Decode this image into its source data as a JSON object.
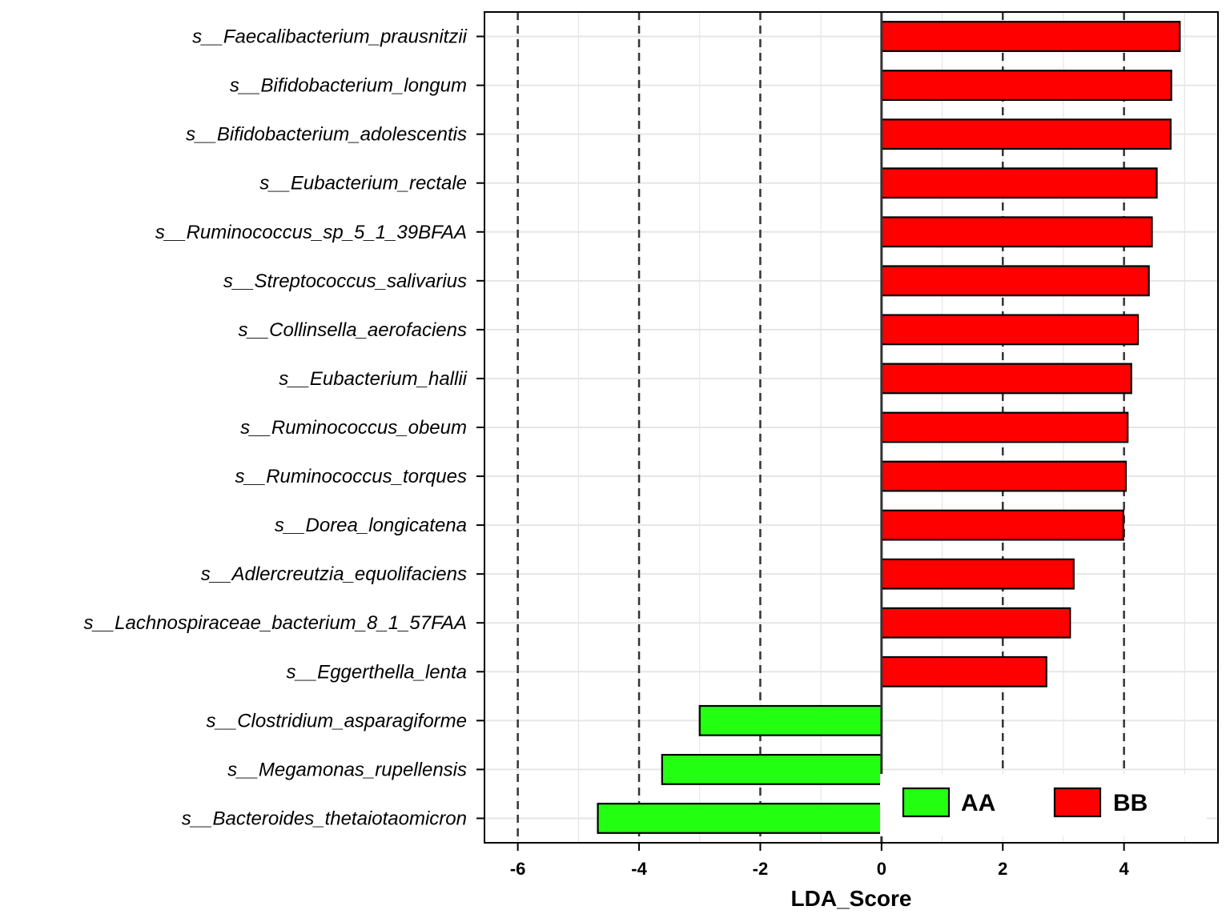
{
  "chart_data": {
    "type": "bar",
    "orientation": "horizontal",
    "categories": [
      "s__Faecalibacterium_prausnitzii",
      "s__Bifidobacterium_longum",
      "s__Bifidobacterium_adolescentis",
      "s__Eubacterium_rectale",
      "s__Ruminococcus_sp_5_1_39BFAA",
      "s__Streptococcus_salivarius",
      "s__Collinsella_aerofaciens",
      "s__Eubacterium_hallii",
      "s__Ruminococcus_obeum",
      "s__Ruminococcus_torques",
      "s__Dorea_longicatena",
      "s__Adlercreutzia_equolifaciens",
      "s__Lachnospiraceae_bacterium_8_1_57FAA",
      "s__Eggerthella_lenta",
      "s__Clostridium_asparagiforme",
      "s__Megamonas_rupellensis",
      "s__Bacteroides_thetaiotaomicron"
    ],
    "values": [
      4.92,
      4.78,
      4.77,
      4.54,
      4.46,
      4.41,
      4.23,
      4.12,
      4.06,
      4.03,
      3.99,
      3.17,
      3.11,
      2.72,
      -3.0,
      -3.62,
      -4.68
    ],
    "groups": [
      "BB",
      "BB",
      "BB",
      "BB",
      "BB",
      "BB",
      "BB",
      "BB",
      "BB",
      "BB",
      "BB",
      "BB",
      "BB",
      "BB",
      "AA",
      "AA",
      "AA"
    ],
    "legend": [
      {
        "name": "AA",
        "color": "#22ff10"
      },
      {
        "name": "BB",
        "color": "#ff0000"
      }
    ],
    "legend_position": "bottom-right",
    "xlabel": "LDA_Score",
    "ylabel": "",
    "xlim": [
      -6.55,
      5.55
    ],
    "xticks": [
      -6,
      -4,
      -2,
      0,
      2,
      4
    ],
    "xtick_labels": [
      "-6",
      "-4",
      "-2",
      "0",
      "2",
      "4"
    ],
    "dashed_reference_lines": [
      -6,
      -4,
      -2,
      2,
      4
    ],
    "grid": true
  }
}
